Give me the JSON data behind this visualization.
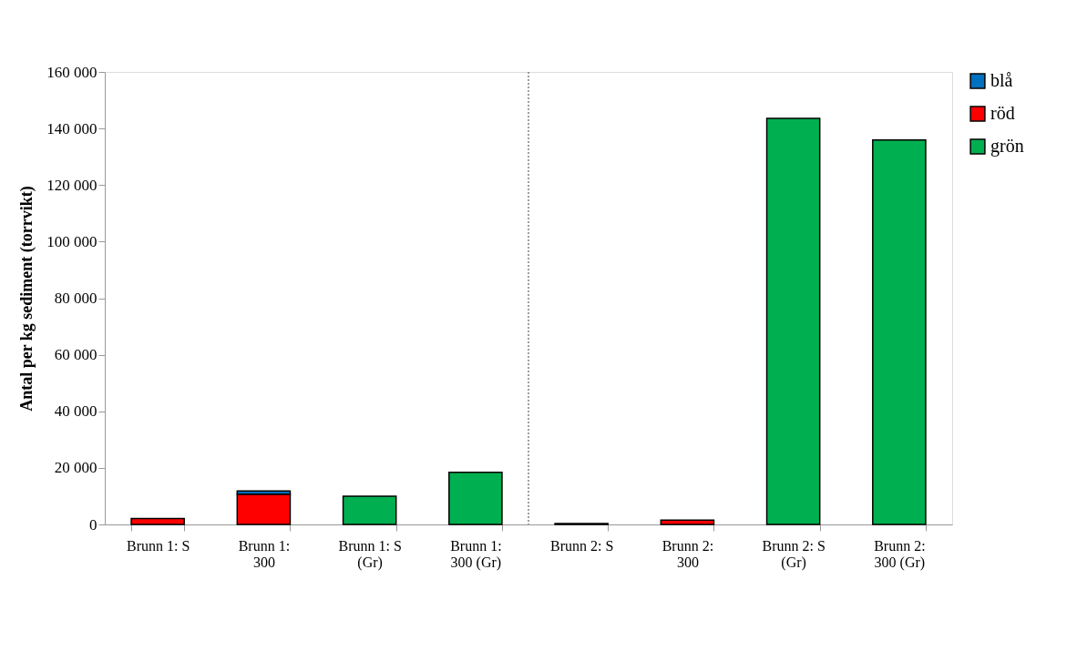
{
  "chart_data": {
    "type": "bar",
    "stacked": true,
    "ylabel": "Antal per kg sediment (torrvikt)",
    "categories": [
      "Brunn 1: S",
      "Brunn 1: 300",
      "Brunn 1: S (Gr)",
      "Brunn 1: 300 (Gr)",
      "Brunn 2: S",
      "Brunn 2: 300",
      "Brunn 2: S (Gr)",
      "Brunn 2: 300 (Gr)"
    ],
    "series": [
      {
        "name": "grön",
        "color": "#00b050",
        "values": [
          0,
          0,
          10000,
          18400,
          300,
          0,
          143600,
          135900
        ]
      },
      {
        "name": "röd",
        "color": "#ff0000",
        "values": [
          2100,
          10700,
          0,
          0,
          0,
          1500,
          0,
          0
        ]
      },
      {
        "name": "blå",
        "color": "#0070c0",
        "values": [
          0,
          1100,
          0,
          0,
          0,
          0,
          0,
          0
        ]
      }
    ],
    "ylim": [
      0,
      160000
    ],
    "yticks": [
      {
        "value": 0,
        "label": "0"
      },
      {
        "value": 20000,
        "label": "20 000"
      },
      {
        "value": 40000,
        "label": "40 000"
      },
      {
        "value": 60000,
        "label": "60 000"
      },
      {
        "value": 80000,
        "label": "80 000"
      },
      {
        "value": 100000,
        "label": "100 000"
      },
      {
        "value": 120000,
        "label": "120 000"
      },
      {
        "value": 140000,
        "label": "140 000"
      },
      {
        "value": 160000,
        "label": "160 000"
      }
    ],
    "legend": "right",
    "grid": false
  }
}
